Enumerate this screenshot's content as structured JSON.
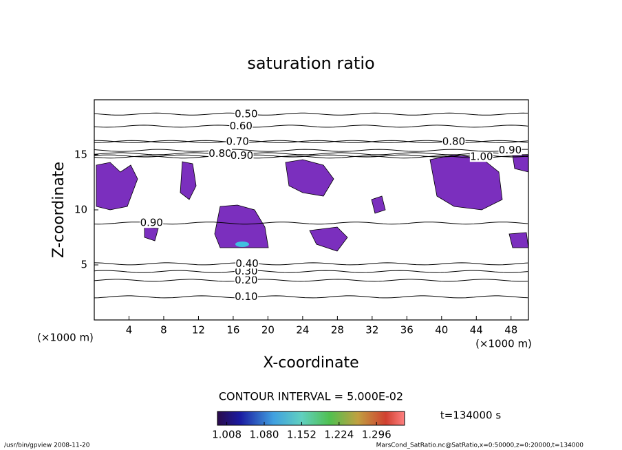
{
  "chart_data": {
    "type": "contour",
    "title": "saturation ratio",
    "x_label": "X-coordinate",
    "y_label": "Z-coordinate",
    "x_unit": "(×1000 m)",
    "y_unit": "(×1000 m)",
    "xlim": [
      0,
      50
    ],
    "ylim": [
      0,
      20
    ],
    "xticks": [
      4,
      8,
      12,
      16,
      20,
      24,
      28,
      32,
      36,
      40,
      44,
      48
    ],
    "yticks": [
      5,
      10,
      15
    ],
    "contours": [
      {
        "label": "0.10",
        "level": 0.1,
        "x": 17.5,
        "z": 2.1
      },
      {
        "label": "0.20",
        "level": 0.2,
        "x": 17.5,
        "z": 3.6
      },
      {
        "label": "0.30",
        "level": 0.3,
        "x": 17.5,
        "z": 4.4
      },
      {
        "label": "0.40",
        "level": 0.4,
        "x": 17.6,
        "z": 5.1
      },
      {
        "label": "0.50",
        "level": 0.5,
        "x": 17.5,
        "z": 18.7
      },
      {
        "label": "0.60",
        "level": 0.6,
        "x": 16.9,
        "z": 17.6
      },
      {
        "label": "0.70",
        "level": 0.7,
        "x": 16.5,
        "z": 16.2
      },
      {
        "label": "0.80",
        "level": 0.8,
        "x": 14.5,
        "z": 15.1
      },
      {
        "label": "0.90",
        "level": 0.9,
        "x": 17.0,
        "z": 14.9
      },
      {
        "label": "0.80",
        "level": 0.8,
        "x": 41.4,
        "z": 16.2
      },
      {
        "label": "0.90",
        "level": 0.9,
        "x": 47.9,
        "z": 15.4
      },
      {
        "label": "1.00",
        "level": 1.0,
        "x": 44.6,
        "z": 14.8
      },
      {
        "label": "0.90",
        "level": 0.9,
        "x": 6.6,
        "z": 8.8
      }
    ],
    "contour_interval_label": "CONTOUR INTERVAL = 5.000E-02",
    "colorbar": {
      "clim": [
        0.99,
        1.35
      ],
      "ticks": [
        1.008,
        {
          "value": 1.08,
          "label": "1.080"
        },
        1.152,
        1.224,
        1.296
      ]
    },
    "time_label": "t=134000 s",
    "footer_left": "/usr/bin/gpview  2008-11-20",
    "footer_right": "MarsCond_SatRatio.nc@SatRatio,x=0:50000,z=0:20000,t=134000"
  }
}
